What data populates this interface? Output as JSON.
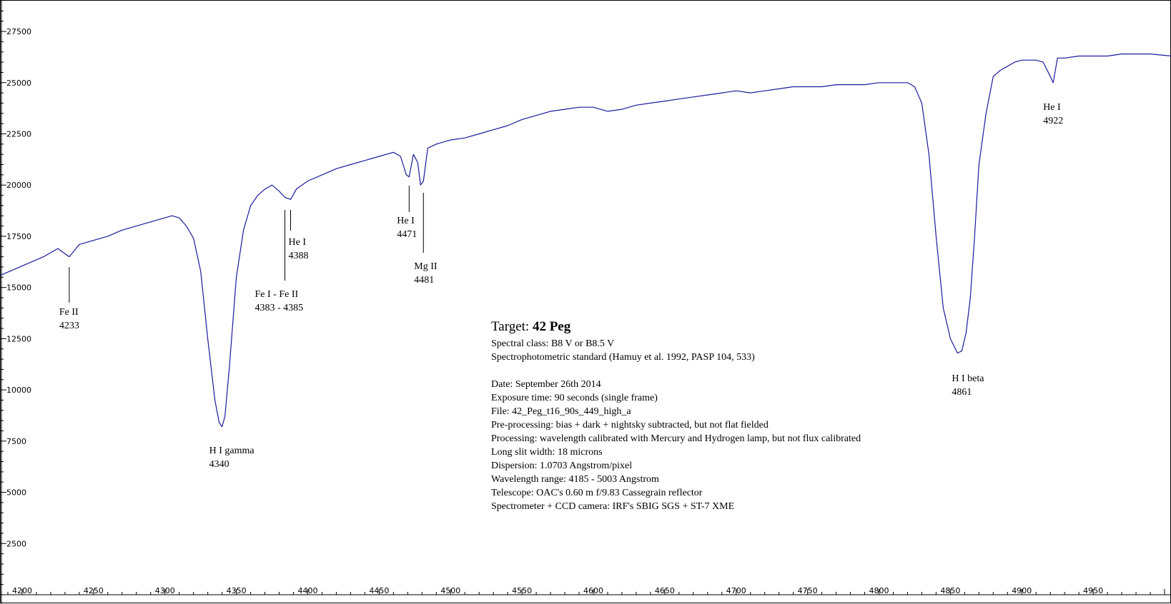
{
  "chart_data": {
    "type": "line",
    "title": "",
    "xlabel": "",
    "ylabel": "",
    "xlim": [
      4185,
      5005
    ],
    "ylim": [
      0,
      29000
    ],
    "grid": false,
    "line_color": "#1a1a9c",
    "x_ticks": [
      "4200",
      "4250",
      "4300",
      "4350",
      "4400",
      "4450",
      "4500",
      "4550",
      "4600",
      "4650",
      "4700",
      "4750",
      "4800",
      "4850",
      "4900",
      "4950"
    ],
    "y_ticks": [
      "2500",
      "5000",
      "7500",
      "10000",
      "12500",
      "15000",
      "17500",
      "20000",
      "22500",
      "25000",
      "27500"
    ],
    "series": [
      {
        "x": [
          4185,
          4195,
          4205,
          4215,
          4225,
          4233,
          4240,
          4250,
          4260,
          4270,
          4280,
          4290,
          4300,
          4305,
          4310,
          4315,
          4320,
          4325,
          4330,
          4335,
          4338,
          4340,
          4342,
          4345,
          4350,
          4355,
          4360,
          4365,
          4370,
          4375,
          4380,
          4384,
          4388,
          4392,
          4400,
          4410,
          4420,
          4430,
          4440,
          4450,
          4460,
          4465,
          4469,
          4471,
          4474,
          4477,
          4479,
          4481,
          4484,
          4490,
          4500,
          4510,
          4520,
          4530,
          4540,
          4550,
          4560,
          4570,
          4580,
          4590,
          4600,
          4610,
          4620,
          4630,
          4640,
          4650,
          4660,
          4670,
          4680,
          4690,
          4700,
          4710,
          4720,
          4730,
          4740,
          4750,
          4760,
          4770,
          4780,
          4790,
          4800,
          4810,
          4820,
          4825,
          4830,
          4835,
          4840,
          4845,
          4850,
          4855,
          4858,
          4861,
          4864,
          4867,
          4870,
          4875,
          4880,
          4885,
          4890,
          4895,
          4900,
          4905,
          4910,
          4915,
          4920,
          4922,
          4925,
          4930,
          4940,
          4950,
          4960,
          4970,
          4980,
          4990,
          5005
        ],
        "y": [
          15600,
          15900,
          16200,
          16500,
          16900,
          16500,
          17100,
          17300,
          17500,
          17800,
          18000,
          18200,
          18400,
          18500,
          18400,
          18000,
          17400,
          15800,
          12500,
          9500,
          8400,
          8200,
          8700,
          11000,
          15500,
          17800,
          19000,
          19500,
          19800,
          20000,
          19700,
          19400,
          19300,
          19800,
          20200,
          20500,
          20800,
          21000,
          21200,
          21400,
          21600,
          21400,
          20500,
          20400,
          21500,
          21100,
          20000,
          20200,
          21800,
          22000,
          22200,
          22300,
          22500,
          22700,
          22900,
          23200,
          23400,
          23600,
          23700,
          23800,
          23800,
          23600,
          23700,
          23900,
          24000,
          24100,
          24200,
          24300,
          24400,
          24500,
          24600,
          24500,
          24600,
          24700,
          24800,
          24800,
          24800,
          24900,
          24900,
          24900,
          25000,
          25000,
          25000,
          24800,
          24000,
          21500,
          17500,
          14000,
          12500,
          11800,
          11900,
          12800,
          14500,
          17500,
          21000,
          23500,
          25300,
          25600,
          25800,
          26000,
          26100,
          26100,
          26100,
          26000,
          25300,
          25000,
          26200,
          26200,
          26300,
          26300,
          26300,
          26400,
          26400,
          26400,
          26300
        ]
      }
    ],
    "annotations": [
      {
        "name": "Fe II",
        "wavelength": "4233",
        "x": 4233
      },
      {
        "name": "H I gamma",
        "wavelength": "4340",
        "x": 4340
      },
      {
        "name": "Fe I - Fe II",
        "wavelength": "4383 - 4385",
        "x": 4384
      },
      {
        "name": "He I",
        "wavelength": "4388",
        "x": 4388
      },
      {
        "name": "He I",
        "wavelength": "4471",
        "x": 4471
      },
      {
        "name": "Mg II",
        "wavelength": "4481",
        "x": 4481
      },
      {
        "name": "H I beta",
        "wavelength": "4861",
        "x": 4861
      },
      {
        "name": "He I",
        "wavelength": "4922",
        "x": 4922
      }
    ]
  },
  "info": {
    "target_prefix": "Target: ",
    "target_name": "42 Peg",
    "lines": [
      "Spectral class: B8 V or B8.5 V",
      "Spectrophotometric standard (Hamuy et al. 1992, PASP 104, 533)",
      "",
      "Date: September 26th 2014",
      "Exposure time: 90 seconds (single frame)",
      "File: 42_Peg_t16_90s_449_high_a",
      "Pre-processing: bias + dark + nightsky subtracted, but not flat fielded",
      "Processing: wavelength calibrated with Mercury and Hydrogen lamp, but not flux calibrated",
      "Long slit width: 18 microns",
      "Dispersion: 1.0703 Angstrom/pixel",
      "Wavelength range: 4185 - 5003 Angstrom",
      "Telescope: OAC's 0.60 m f/9.83 Cassegrain reflector",
      "Spectrometer + CCD camera: IRF's SBIG SGS + ST-7 XME"
    ]
  }
}
